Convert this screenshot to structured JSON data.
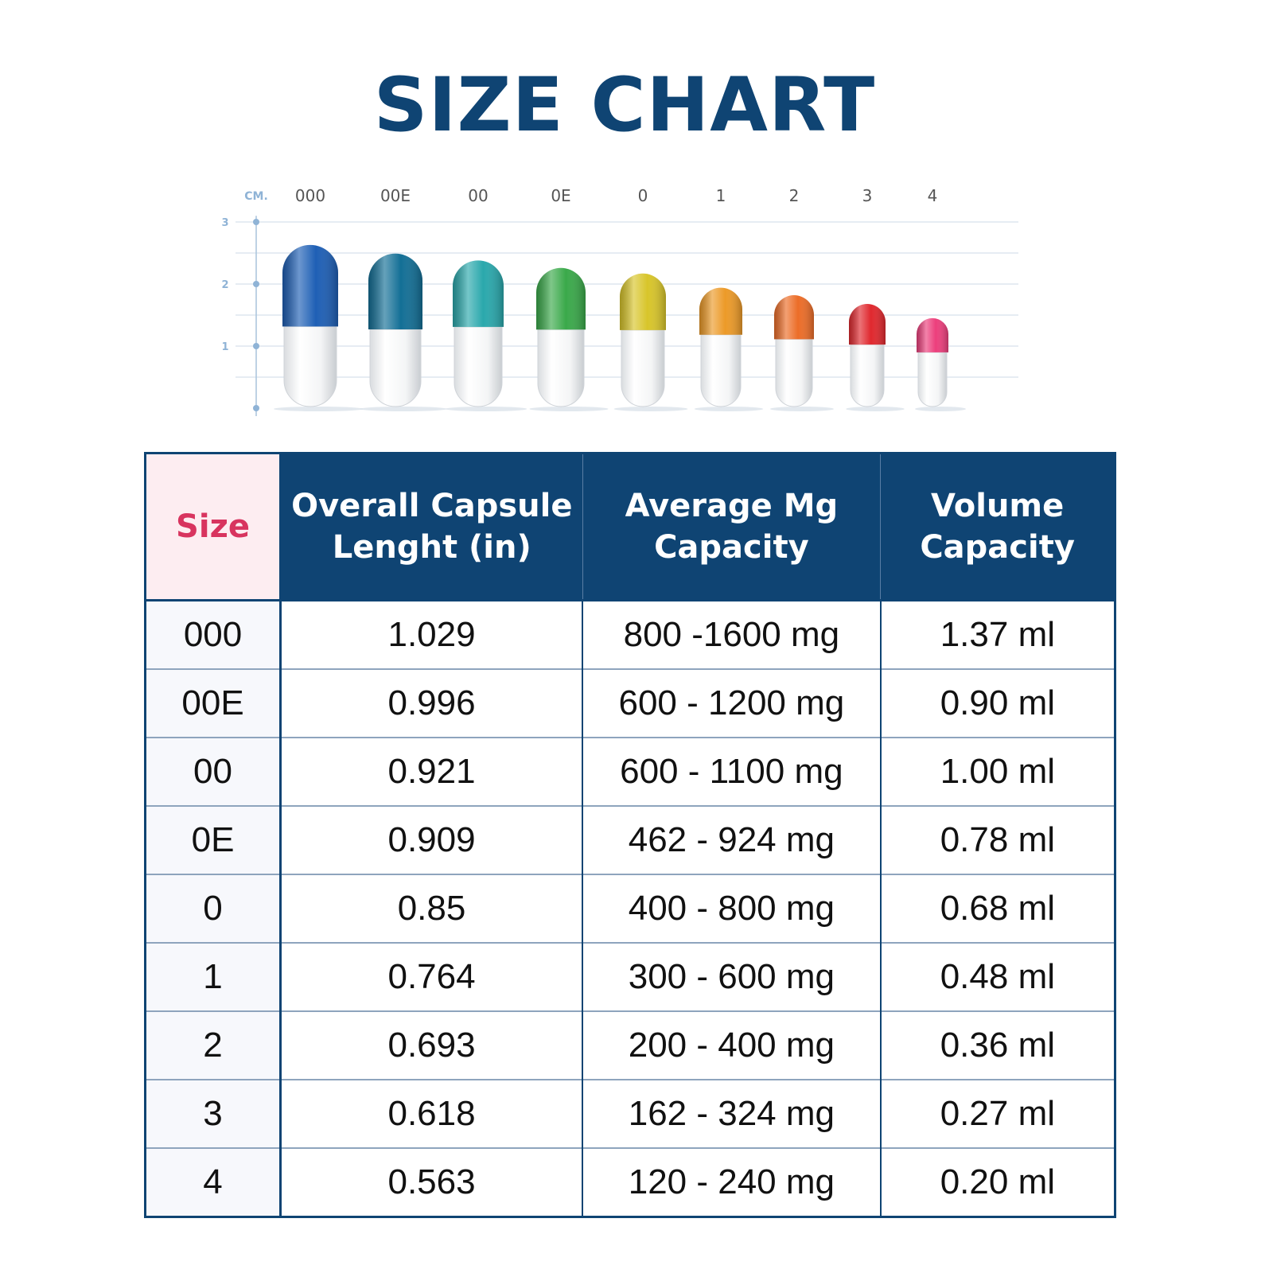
{
  "title": "SIZE CHART",
  "chart_data": {
    "type": "bar",
    "unit_label": "CM.",
    "categories": [
      "000",
      "00E",
      "00",
      "0E",
      "0",
      "1",
      "2",
      "3",
      "4"
    ],
    "values": [
      2.63,
      2.49,
      2.38,
      2.26,
      2.17,
      1.94,
      1.82,
      1.68,
      1.45
    ],
    "cap_fraction": [
      0.5,
      0.49,
      0.45,
      0.44,
      0.42,
      0.39,
      0.39,
      0.39,
      0.38
    ],
    "yticks": [
      "1",
      "2",
      "3"
    ],
    "ylim": [
      0,
      3
    ],
    "colors": [
      "#1e5fb5",
      "#136f96",
      "#2aa8ac",
      "#3aa94a",
      "#d8c52a",
      "#ec9a28",
      "#ec6d28",
      "#e0282e",
      "#ec3f7c"
    ]
  },
  "table": {
    "headers": [
      "Size",
      "Overall Capsule\nLenght (in)",
      "Average Mg\nCapacity",
      "Volume\nCapacity"
    ],
    "rows": [
      [
        "000",
        "1.029",
        "800 -1600 mg",
        "1.37 ml"
      ],
      [
        "00E",
        "0.996",
        "600 - 1200 mg",
        "0.90 ml"
      ],
      [
        "00",
        "0.921",
        "600 - 1100 mg",
        "1.00 ml"
      ],
      [
        "0E",
        "0.909",
        "462 - 924 mg",
        "0.78 ml"
      ],
      [
        "0",
        "0.85",
        "400 - 800 mg",
        "0.68 ml"
      ],
      [
        "1",
        "0.764",
        "300 - 600 mg",
        "0.48 ml"
      ],
      [
        "2",
        "0.693",
        "200 - 400 mg",
        "0.36 ml"
      ],
      [
        "3",
        "0.618",
        "162 - 324 mg",
        "0.27 ml"
      ],
      [
        "4",
        "0.563",
        "120 - 240 mg",
        "0.20 ml"
      ]
    ]
  }
}
